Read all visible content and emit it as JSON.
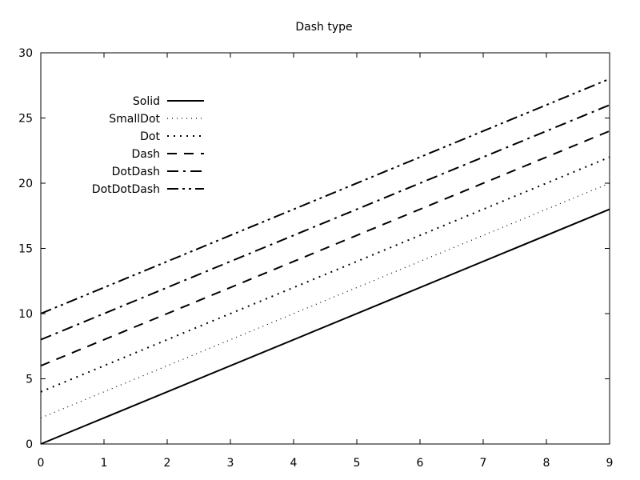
{
  "chart_data": {
    "type": "line",
    "title": "Dash type",
    "xlabel": "",
    "ylabel": "",
    "xlim": [
      0,
      9
    ],
    "ylim": [
      0,
      30
    ],
    "xticks": [
      0,
      1,
      2,
      3,
      4,
      5,
      6,
      7,
      8,
      9
    ],
    "yticks": [
      0,
      5,
      10,
      15,
      20,
      25,
      30
    ],
    "grid": false,
    "legend_position": "top-left",
    "x": [
      0,
      9
    ],
    "series": [
      {
        "name": "Solid",
        "values": [
          0,
          18
        ],
        "dash": "solid",
        "color": "#000000"
      },
      {
        "name": "SmallDot",
        "values": [
          2,
          20
        ],
        "dash": "smalldot",
        "color": "#000000"
      },
      {
        "name": "Dot",
        "values": [
          4,
          22
        ],
        "dash": "dot",
        "color": "#000000"
      },
      {
        "name": "Dash",
        "values": [
          6,
          24
        ],
        "dash": "dash",
        "color": "#000000"
      },
      {
        "name": "DotDash",
        "values": [
          8,
          26
        ],
        "dash": "dotdash",
        "color": "#000000"
      },
      {
        "name": "DotDotDash",
        "values": [
          10,
          28
        ],
        "dash": "dotdotdash",
        "color": "#000000"
      }
    ]
  }
}
